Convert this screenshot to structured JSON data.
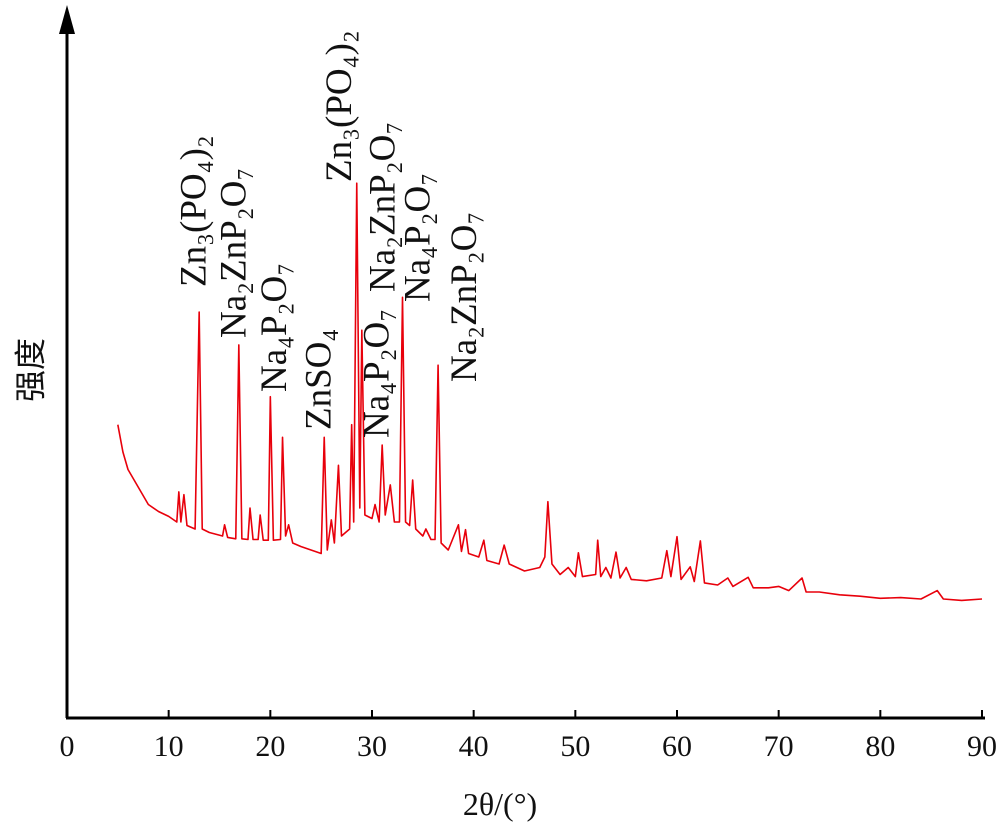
{
  "chart_data": {
    "type": "line",
    "x_label": "2θ/(°)",
    "y_label": "强度",
    "xlim": [
      0,
      90
    ],
    "xticks": [
      0,
      10,
      20,
      30,
      40,
      50,
      60,
      70,
      80,
      90
    ],
    "ylim": [
      0,
      100
    ],
    "series": [
      {
        "color": "#e8000b",
        "x": [
          5,
          5.5,
          6,
          7,
          8,
          9,
          10,
          10.8,
          11,
          11.2,
          11.5,
          11.8,
          12.6,
          13,
          13.3,
          14,
          15.3,
          15.5,
          15.8,
          16.6,
          16.9,
          17.2,
          17.8,
          18,
          18.3,
          18.8,
          19,
          19.3,
          19.8,
          20,
          20.3,
          21,
          21.2,
          21.5,
          21.8,
          22.2,
          23,
          24,
          25,
          25.3,
          25.6,
          26,
          26.3,
          26.7,
          27,
          27.8,
          28,
          28.2,
          28.5,
          28.8,
          29,
          29.3,
          30,
          30.3,
          30.7,
          31,
          31.3,
          31.8,
          32.2,
          32.7,
          33,
          33.3,
          33.7,
          34,
          34.3,
          35,
          35.3,
          35.8,
          36.2,
          36.5,
          36.8,
          37.5,
          38.5,
          38.8,
          39.2,
          39.5,
          40.5,
          41,
          41.3,
          42.5,
          43,
          43.5,
          45,
          46.5,
          47,
          47.3,
          47.7,
          48.5,
          49.3,
          50,
          50.3,
          50.7,
          52,
          52.2,
          52.5,
          53,
          53.5,
          54,
          54.4,
          55,
          55.5,
          57,
          58.5,
          59,
          59.4,
          60,
          60.4,
          61.3,
          61.7,
          62.3,
          62.7,
          64,
          65,
          65.5,
          67,
          67.5,
          69,
          70,
          71,
          72.3,
          72.7,
          74,
          76,
          78,
          80,
          82,
          84,
          85.6,
          86.2,
          88,
          90
        ],
        "values": [
          41.9,
          38,
          35.5,
          33,
          30.5,
          29.5,
          28.8,
          28,
          32.3,
          28,
          31.9,
          27.5,
          27,
          58,
          27,
          26.5,
          26,
          27.6,
          25.8,
          25.6,
          53.3,
          25.6,
          25.5,
          30,
          25.5,
          25.5,
          29,
          25.4,
          25.4,
          45.9,
          25.4,
          25.5,
          40.1,
          26,
          27.6,
          25,
          24.5,
          24,
          23.5,
          40.1,
          24,
          28.3,
          25,
          36.1,
          26,
          27,
          41.9,
          28,
          76.4,
          30,
          55.4,
          29,
          28.5,
          30.5,
          28,
          39,
          29,
          33.3,
          28,
          28,
          60.1,
          28,
          27.5,
          34,
          27,
          26,
          27,
          25.5,
          25.5,
          50.4,
          25,
          24,
          27.6,
          23.8,
          26.9,
          23.5,
          23,
          25.4,
          22.5,
          22,
          24.7,
          22,
          21,
          21.5,
          23,
          30.9,
          22,
          20.5,
          21.5,
          20.2,
          23.6,
          20.2,
          20.5,
          25.4,
          20.2,
          21.5,
          20,
          23.7,
          20,
          21.5,
          19.8,
          19.6,
          20,
          23.9,
          20.2,
          25.9,
          19.8,
          21.6,
          19.5,
          25.3,
          19.3,
          19,
          20,
          18.8,
          20.1,
          18.6,
          18.6,
          18.8,
          18.2,
          20,
          18,
          18,
          17.6,
          17.4,
          17.1,
          17.2,
          17,
          18.2,
          17,
          16.8,
          17
        ]
      }
    ],
    "annotations": [
      {
        "text": "Zn₃(PO₄)₂",
        "x": 12.8
      },
      {
        "text": "Na₂ZnP₂O₇",
        "x": 16.7
      },
      {
        "text": "Na₄P₂O₇",
        "x": 20.7
      },
      {
        "text": "ZnSO₄",
        "x": 25.1
      },
      {
        "text": "Zn₃(PO₄)₂",
        "x": 27.1
      },
      {
        "text": "Na₄P₂O₇",
        "x": 30.8
      },
      {
        "text": "Na₂ZnP₂O₇",
        "x": 31.4
      },
      {
        "text": "Na₄P₂O₇",
        "x": 34.8
      },
      {
        "text": "Na₂ZnP₂O₇",
        "x": 39.4
      }
    ]
  }
}
